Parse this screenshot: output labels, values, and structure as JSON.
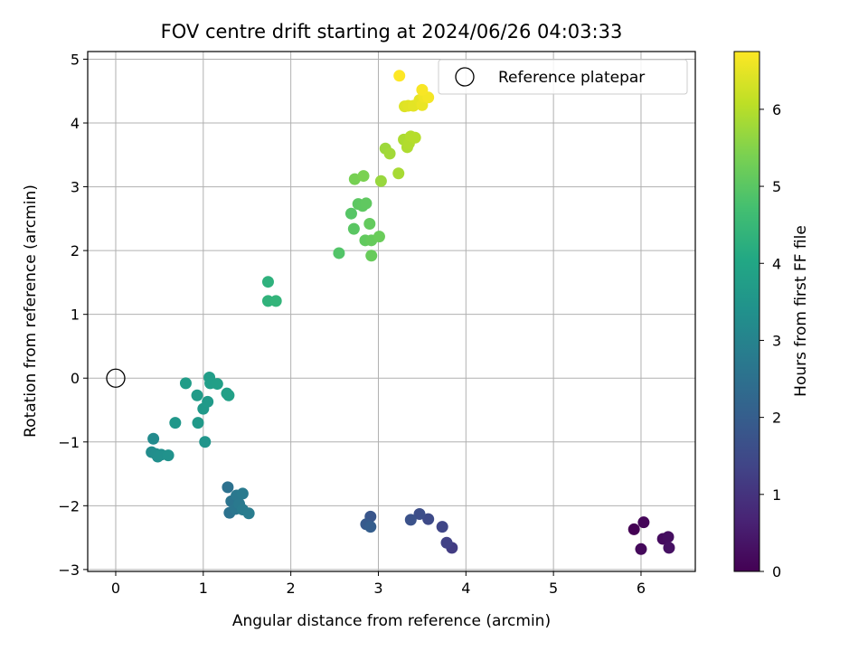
{
  "chart_data": {
    "type": "scatter",
    "title": "FOV centre drift starting at 2024/06/26 04:03:33",
    "xlabel": "Angular distance from reference (arcmin)",
    "ylabel": "Rotation from reference (arcmin)",
    "xlim": [
      -0.32,
      6.62
    ],
    "ylim": [
      -3.03,
      5.12
    ],
    "xticks": [
      0,
      1,
      2,
      3,
      4,
      5,
      6
    ],
    "yticks": [
      -3,
      -2,
      -1,
      0,
      1,
      2,
      3,
      4,
      5
    ],
    "grid": true,
    "colormap": "viridis",
    "colorbar": {
      "label": "Hours from first FF file",
      "min": 0,
      "max": 6.75,
      "ticks": [
        0,
        1,
        2,
        3,
        4,
        5,
        6
      ]
    },
    "legend": {
      "position": "top-right",
      "entries": [
        {
          "label": "Reference platepar",
          "marker": "hollow-circle"
        }
      ]
    },
    "reference_point": {
      "x": 0,
      "y": 0
    },
    "series": [
      {
        "points": [
          {
            "x": 5.92,
            "y": -2.37,
            "c": 0.0
          },
          {
            "x": 6.03,
            "y": -2.26,
            "c": 0.1
          },
          {
            "x": 6.0,
            "y": -2.68,
            "c": 0.15
          },
          {
            "x": 6.25,
            "y": -2.52,
            "c": 0.2
          },
          {
            "x": 6.31,
            "y": -2.49,
            "c": 0.25
          },
          {
            "x": 6.32,
            "y": -2.66,
            "c": 0.3
          },
          {
            "x": 3.84,
            "y": -2.66,
            "c": 1.2
          },
          {
            "x": 3.78,
            "y": -2.58,
            "c": 1.3
          },
          {
            "x": 3.73,
            "y": -2.33,
            "c": 1.4
          },
          {
            "x": 3.57,
            "y": -2.21,
            "c": 1.5
          },
          {
            "x": 3.47,
            "y": -2.13,
            "c": 1.6
          },
          {
            "x": 3.37,
            "y": -2.22,
            "c": 1.7
          },
          {
            "x": 2.91,
            "y": -2.17,
            "c": 1.8
          },
          {
            "x": 2.86,
            "y": -2.29,
            "c": 1.9
          },
          {
            "x": 2.91,
            "y": -2.33,
            "c": 2.0
          },
          {
            "x": 1.28,
            "y": -1.71,
            "c": 2.5
          },
          {
            "x": 1.3,
            "y": -2.11,
            "c": 2.55
          },
          {
            "x": 1.32,
            "y": -1.93,
            "c": 2.6
          },
          {
            "x": 1.37,
            "y": -2.05,
            "c": 2.65
          },
          {
            "x": 1.38,
            "y": -1.84,
            "c": 2.7
          },
          {
            "x": 1.41,
            "y": -1.97,
            "c": 2.72
          },
          {
            "x": 1.45,
            "y": -1.81,
            "c": 2.75
          },
          {
            "x": 1.45,
            "y": -2.06,
            "c": 2.78
          },
          {
            "x": 1.52,
            "y": -2.12,
            "c": 2.8
          },
          {
            "x": 0.43,
            "y": -0.95,
            "c": 3.2
          },
          {
            "x": 0.41,
            "y": -1.16,
            "c": 3.25
          },
          {
            "x": 0.46,
            "y": -1.19,
            "c": 3.3
          },
          {
            "x": 0.48,
            "y": -1.23,
            "c": 3.32
          },
          {
            "x": 0.52,
            "y": -1.2,
            "c": 3.35
          },
          {
            "x": 0.6,
            "y": -1.21,
            "c": 3.4
          },
          {
            "x": 1.02,
            "y": -1.0,
            "c": 3.5
          },
          {
            "x": 0.68,
            "y": -0.7,
            "c": 3.55
          },
          {
            "x": 0.94,
            "y": -0.7,
            "c": 3.6
          },
          {
            "x": 1.0,
            "y": -0.48,
            "c": 3.62
          },
          {
            "x": 1.05,
            "y": -0.37,
            "c": 3.65
          },
          {
            "x": 0.93,
            "y": -0.27,
            "c": 3.68
          },
          {
            "x": 0.8,
            "y": -0.08,
            "c": 3.7
          },
          {
            "x": 1.07,
            "y": 0.01,
            "c": 3.72
          },
          {
            "x": 1.08,
            "y": -0.08,
            "c": 3.75
          },
          {
            "x": 1.16,
            "y": -0.09,
            "c": 3.78
          },
          {
            "x": 1.27,
            "y": -0.24,
            "c": 3.8
          },
          {
            "x": 1.29,
            "y": -0.27,
            "c": 3.82
          },
          {
            "x": 1.74,
            "y": 1.51,
            "c": 4.3
          },
          {
            "x": 1.74,
            "y": 1.21,
            "c": 4.35
          },
          {
            "x": 1.83,
            "y": 1.21,
            "c": 4.4
          },
          {
            "x": 2.55,
            "y": 1.96,
            "c": 4.9
          },
          {
            "x": 2.69,
            "y": 2.58,
            "c": 4.95
          },
          {
            "x": 2.72,
            "y": 2.34,
            "c": 5.0
          },
          {
            "x": 2.77,
            "y": 2.73,
            "c": 5.02
          },
          {
            "x": 2.82,
            "y": 2.7,
            "c": 5.05
          },
          {
            "x": 2.86,
            "y": 2.74,
            "c": 5.08
          },
          {
            "x": 2.85,
            "y": 2.16,
            "c": 5.1
          },
          {
            "x": 2.9,
            "y": 2.42,
            "c": 5.12
          },
          {
            "x": 2.92,
            "y": 2.16,
            "c": 5.15
          },
          {
            "x": 2.92,
            "y": 1.92,
            "c": 5.18
          },
          {
            "x": 3.01,
            "y": 2.22,
            "c": 5.2
          },
          {
            "x": 2.73,
            "y": 3.12,
            "c": 5.35
          },
          {
            "x": 2.83,
            "y": 3.17,
            "c": 5.4
          },
          {
            "x": 3.03,
            "y": 3.09,
            "c": 5.7
          },
          {
            "x": 3.08,
            "y": 3.6,
            "c": 5.75
          },
          {
            "x": 3.13,
            "y": 3.52,
            "c": 5.8
          },
          {
            "x": 3.23,
            "y": 3.21,
            "c": 5.85
          },
          {
            "x": 3.29,
            "y": 3.74,
            "c": 5.9
          },
          {
            "x": 3.33,
            "y": 3.62,
            "c": 5.92
          },
          {
            "x": 3.35,
            "y": 3.68,
            "c": 5.95
          },
          {
            "x": 3.37,
            "y": 3.79,
            "c": 5.97
          },
          {
            "x": 3.42,
            "y": 3.77,
            "c": 6.0
          },
          {
            "x": 3.3,
            "y": 4.26,
            "c": 6.4
          },
          {
            "x": 3.34,
            "y": 4.27,
            "c": 6.45
          },
          {
            "x": 3.4,
            "y": 4.27,
            "c": 6.48
          },
          {
            "x": 3.47,
            "y": 4.36,
            "c": 6.5
          },
          {
            "x": 3.5,
            "y": 4.28,
            "c": 6.55
          },
          {
            "x": 3.52,
            "y": 4.41,
            "c": 6.6
          },
          {
            "x": 3.57,
            "y": 4.4,
            "c": 6.65
          },
          {
            "x": 3.5,
            "y": 4.52,
            "c": 6.7
          },
          {
            "x": 3.24,
            "y": 4.74,
            "c": 6.75
          }
        ]
      }
    ]
  }
}
